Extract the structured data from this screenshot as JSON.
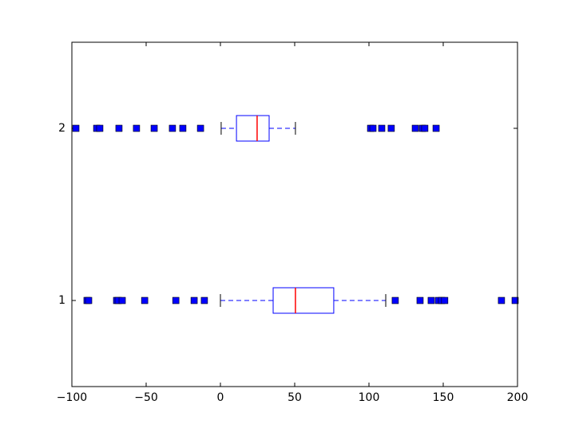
{
  "chart_data": {
    "type": "boxplot",
    "orientation": "horizontal",
    "categories": [
      "1",
      "2"
    ],
    "boxes": [
      {
        "whislo": 0,
        "q1": 35.5,
        "med": 50.5,
        "q3": 76.3,
        "whishi": 111.3,
        "fliers": [
          -89.8,
          -88.7,
          -69.9,
          -68.8,
          -66.1,
          -51,
          -30,
          -17.7,
          -10.8,
          117.7,
          134.4,
          141.9,
          146.8,
          148.9,
          151,
          189.2,
          198.4
        ]
      },
      {
        "whislo": 0.5,
        "q1": 10.8,
        "med": 24.7,
        "q3": 32.8,
        "whishi": 50.5,
        "fliers": [
          -97.3,
          -83.3,
          -81.2,
          -68.3,
          -56.5,
          -44.6,
          -32.3,
          -25.3,
          -13.4,
          101.1,
          102.7,
          108.6,
          115,
          131.2,
          136,
          137.6,
          145.2
        ]
      }
    ],
    "box_color": "#0000ff",
    "median_color": "#ff0000",
    "flier_color": "#0000ff",
    "cap_color": "#000000",
    "xlim": [
      -100,
      200
    ],
    "xticks": [
      {
        "value": -100,
        "label": "−100"
      },
      {
        "value": -50,
        "label": "−50"
      },
      0,
      50,
      100,
      150,
      200
    ],
    "ylim": [
      0.5,
      2.5
    ],
    "grid": false
  }
}
